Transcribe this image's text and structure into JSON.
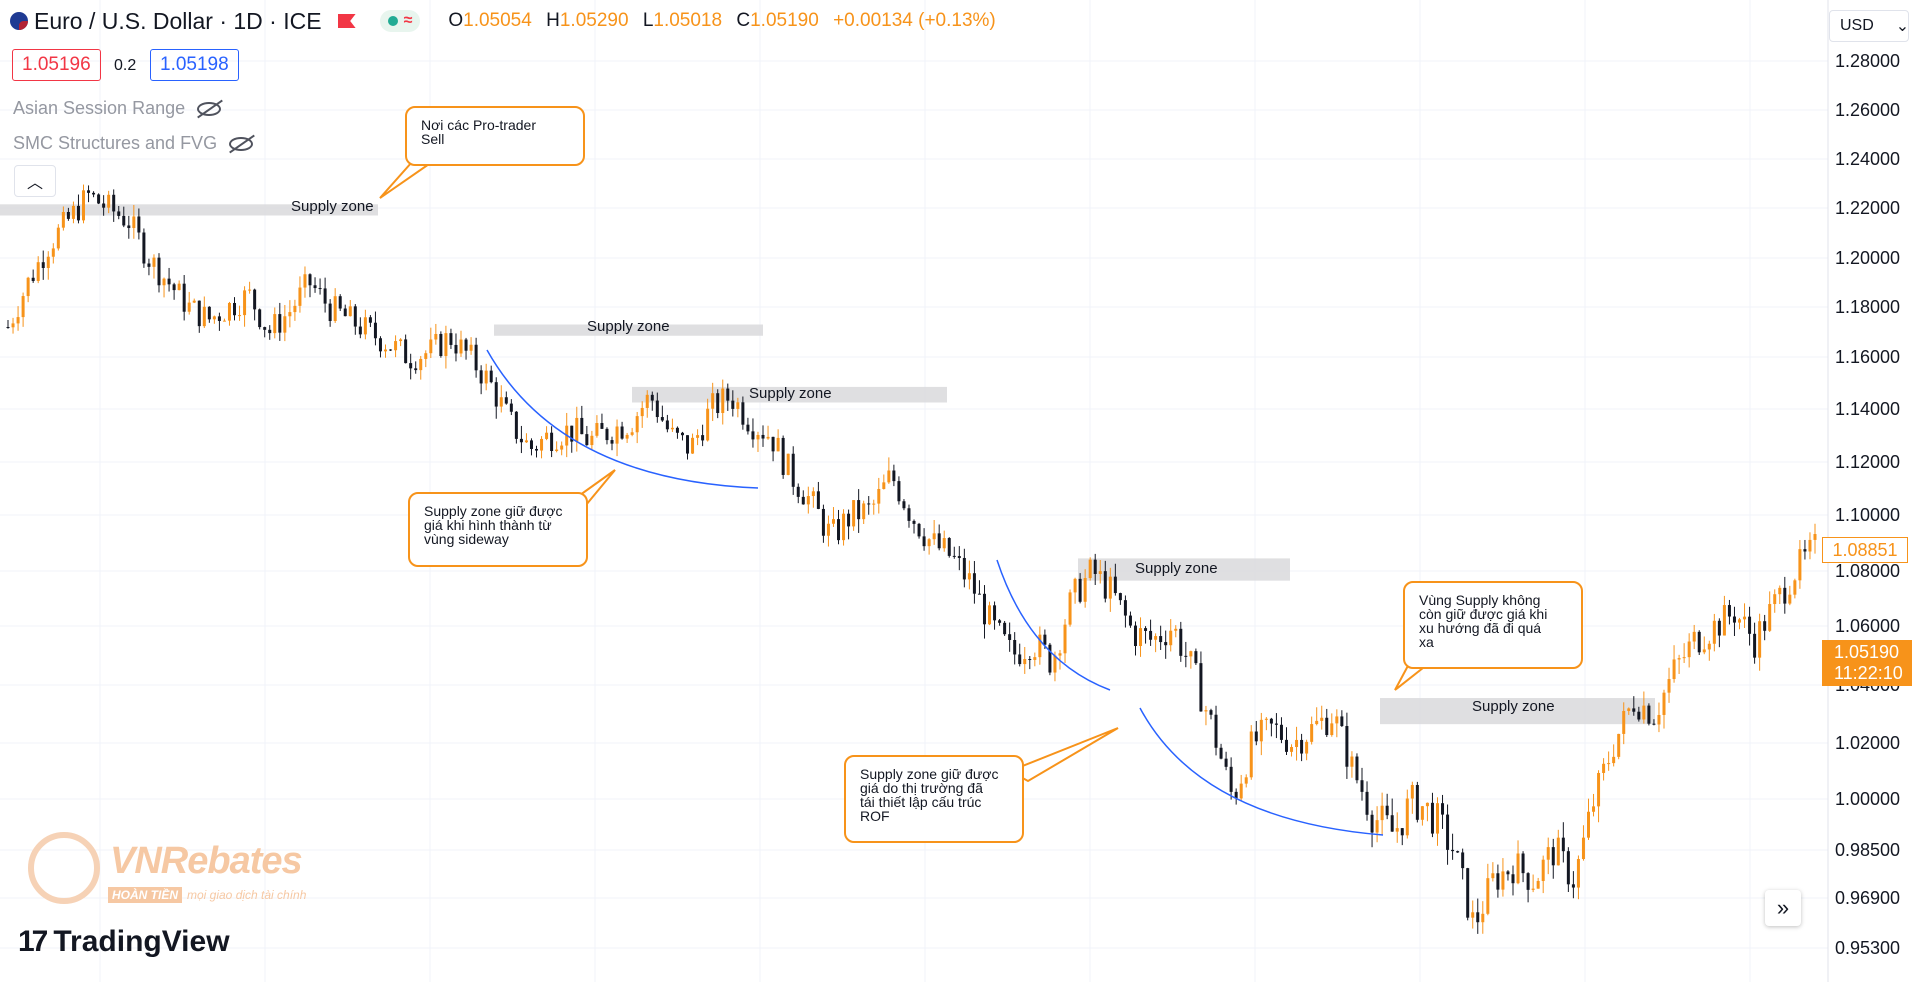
{
  "header": {
    "symbol": "Euro / U.S. Dollar · 1D · ICE",
    "ohlc": {
      "o": "1.05054",
      "h": "1.05290",
      "l": "1.05018",
      "c": "1.05190",
      "change": "+0.00134 (+0.13%)"
    }
  },
  "quote": {
    "bid": "1.05196",
    "spread": "0.2",
    "ask": "1.05198"
  },
  "indicators": [
    "Asian Session Range",
    "SMC Structures and FVG"
  ],
  "currency": "USD",
  "colors": {
    "up": "#f7931a",
    "down": "#131722",
    "zone": "#d9d9dc",
    "callout": "#f7931a",
    "curve": "#2962ff"
  },
  "chart_data": {
    "type": "candlestick",
    "symbol": "EUR/USD",
    "timeframe": "1D",
    "y_ticks": [
      1.28,
      1.26,
      1.24,
      1.22,
      1.2,
      1.18,
      1.16,
      1.14,
      1.12,
      1.1,
      1.08,
      1.06,
      1.04,
      1.02,
      1.0,
      0.985,
      0.969,
      0.953
    ],
    "y_tick_labels": [
      "1.28000",
      "1.26000",
      "1.24000",
      "1.22000",
      "1.20000",
      "1.18000",
      "1.16000",
      "1.14000",
      "1.12000",
      "1.10000",
      "1.08000",
      "1.06000",
      "1.04000",
      "1.02000",
      "1.00000",
      "0.98500",
      "0.96900",
      "0.95300"
    ],
    "price_path": [
      1.172,
      1.19,
      1.205,
      1.215,
      1.225,
      1.22,
      1.215,
      1.2,
      1.19,
      1.18,
      1.175,
      1.18,
      1.185,
      1.17,
      1.178,
      1.19,
      1.18,
      1.175,
      1.17,
      1.165,
      1.16,
      1.162,
      1.168,
      1.16,
      1.15,
      1.135,
      1.125,
      1.13,
      1.132,
      1.128,
      1.132,
      1.135,
      1.145,
      1.13,
      1.125,
      1.14,
      1.145,
      1.135,
      1.13,
      1.115,
      1.105,
      1.092,
      1.1,
      1.102,
      1.115,
      1.1,
      1.09,
      1.085,
      1.075,
      1.06,
      1.05,
      1.055,
      1.048,
      1.07,
      1.08,
      1.072,
      1.058,
      1.055,
      1.06,
      1.045,
      1.025,
      1.0,
      1.02,
      1.025,
      1.02,
      1.025,
      1.03,
      1.01,
      0.995,
      0.99,
      1.0,
      0.995,
      0.985,
      0.96,
      0.975,
      0.98,
      0.975,
      0.985,
      0.975,
      1.0,
      1.02,
      1.035,
      1.03,
      1.045,
      1.055,
      1.06,
      1.065,
      1.055,
      1.068,
      1.08,
      1.088
    ],
    "last_price": "1.08851",
    "current_price": "1.05190",
    "countdown": "11:22:10",
    "supply_zones": [
      {
        "label": "Supply zone",
        "top": 1.2215,
        "bottom": 1.217
      },
      {
        "label": "Supply zone",
        "top": 1.173,
        "bottom": 1.1685
      },
      {
        "label": "Supply zone",
        "top": 1.1485,
        "bottom": 1.1425
      },
      {
        "label": "Supply zone",
        "top": 1.0845,
        "bottom": 1.0765
      },
      {
        "label": "Supply zone",
        "top": 1.0355,
        "bottom": 1.0265
      }
    ],
    "annotations": [
      "Nơi các Pro-trader\nSell",
      "Supply zone giữ được\ngiá khi hình thành từ\nvùng sideway",
      "Supply zone giữ được\ngiá do thị trường đã\ntái thiết lập cấu trúc\nROF",
      "Vùng Supply không\ncòn giữ được giá khi\nxu hướng đã đi quá\nxa"
    ]
  },
  "watermark": {
    "brand": "VNRebates",
    "badge": "HOÀN TIỀN",
    "tagline": "mọi giao dịch tài chính"
  },
  "branding": {
    "logo_text": "TradingView"
  }
}
